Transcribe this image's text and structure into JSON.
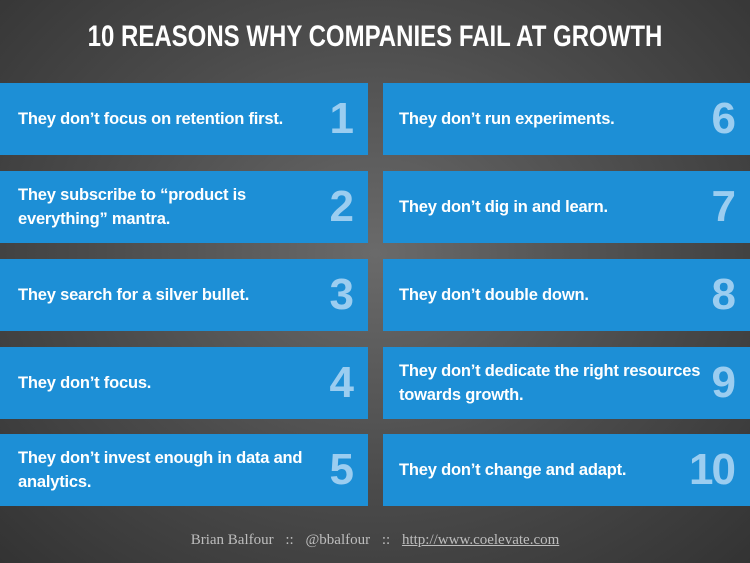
{
  "title": "10 REASONS WHY COMPANIES FAIL AT GROWTH",
  "items": [
    {
      "number": 1,
      "text": "They don’t focus on retention first."
    },
    {
      "number": 2,
      "text": "They subscribe to “product is everything” mantra."
    },
    {
      "number": 3,
      "text": "They search for a silver bullet."
    },
    {
      "number": 4,
      "text": "They don’t focus."
    },
    {
      "number": 5,
      "text": "They don’t invest enough in data and analytics."
    },
    {
      "number": 6,
      "text": "They don’t run experiments."
    },
    {
      "number": 7,
      "text": "They don’t dig in and learn."
    },
    {
      "number": 8,
      "text": "They don’t double down."
    },
    {
      "number": 9,
      "text": "They don’t dedicate the right resources towards growth."
    },
    {
      "number": 10,
      "text": "They don’t change and adapt."
    }
  ],
  "footer": {
    "author": "Brian Balfour",
    "separator_1": "::",
    "handle": "@bbalfour",
    "separator_2": "::",
    "url": "http://www.coelevate.com"
  }
}
